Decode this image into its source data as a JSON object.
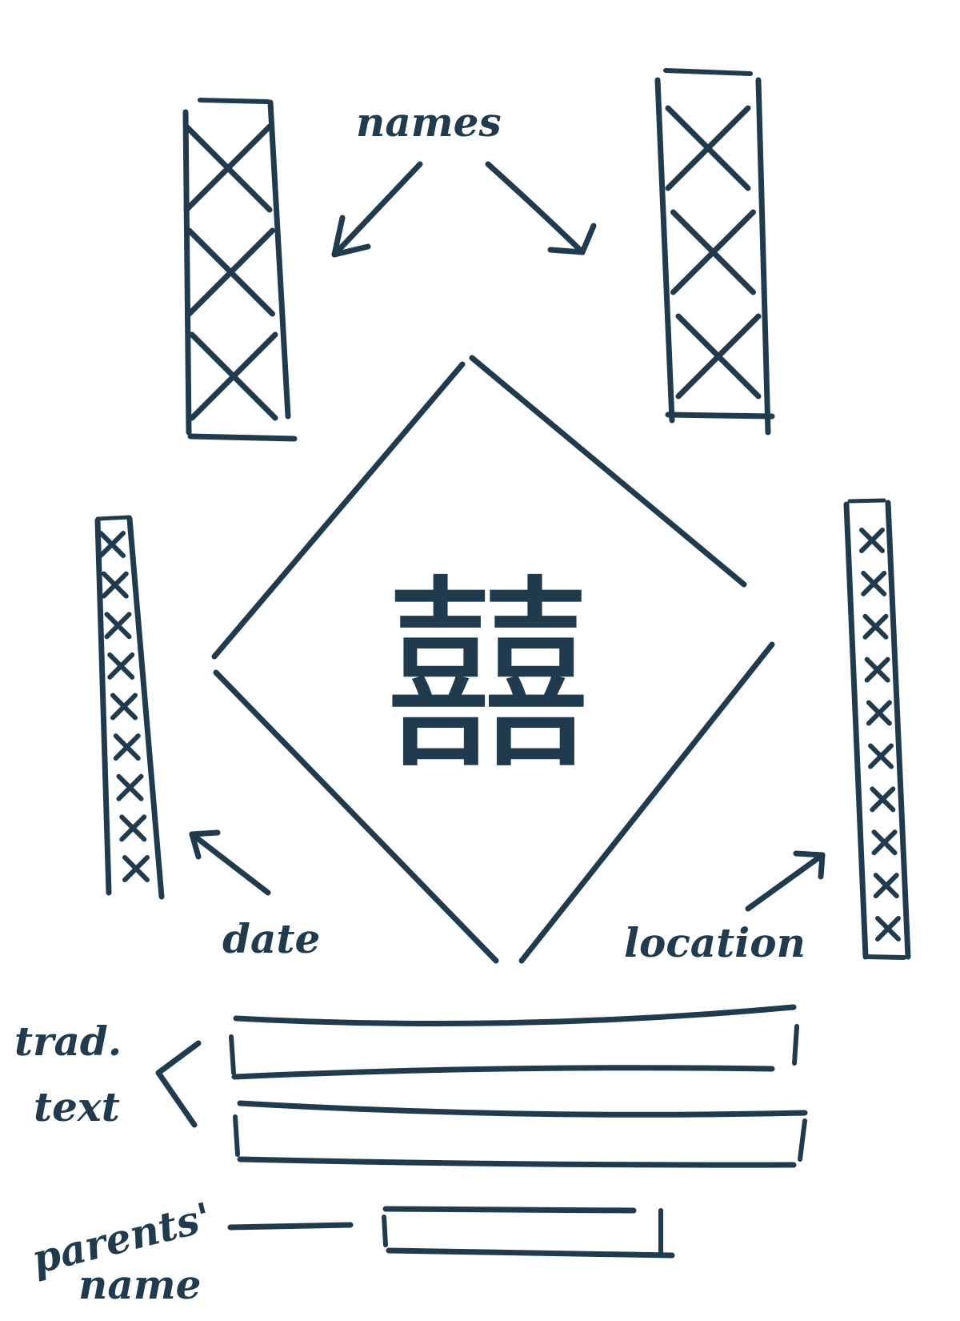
{
  "colors": {
    "ink": "#1f3b4d",
    "background": "#ffffff"
  },
  "center": {
    "glyph": "囍"
  },
  "annotations": {
    "names": "names",
    "date": "date",
    "location": "location",
    "trad_text_line1": "trad.",
    "trad_text_line2": "text",
    "parents_name_line1": "parents'",
    "parents_name_line2": "name"
  },
  "placeholders": {
    "top_left_panel": {
      "cross_count": 3
    },
    "top_right_panel": {
      "cross_count": 3
    },
    "left_column": {
      "cross_count": 9
    },
    "right_column": {
      "cross_count": 10
    },
    "text_bars": {
      "count": 2
    }
  }
}
